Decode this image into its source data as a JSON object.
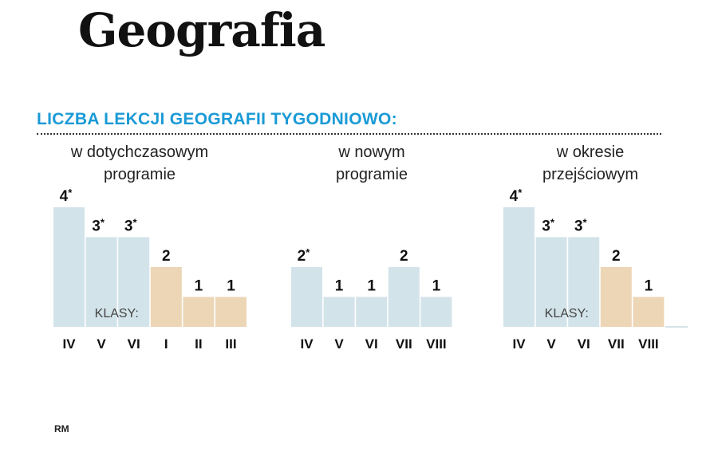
{
  "title": "Geografia",
  "subtitle": "LICZBA LEKCJI GEOGRAFII TYGODNIOWO:",
  "credit": "RM",
  "colors": {
    "blue": "#d3e3ea",
    "beige": "#ecd6b6",
    "accent": "#1a9ad6"
  },
  "chart_data": [
    {
      "type": "bar",
      "title_lines": [
        "w dotychczasowym",
        "programie"
      ],
      "categories": [
        "IV",
        "V",
        "VI",
        "I",
        "II",
        "III"
      ],
      "values": [
        4,
        3,
        3,
        2,
        1,
        1
      ],
      "value_labels": [
        "4",
        "3",
        "3",
        "2",
        "1",
        "1"
      ],
      "starred": [
        true,
        true,
        true,
        false,
        false,
        false
      ],
      "colors": [
        "blue",
        "blue",
        "blue",
        "beige",
        "beige",
        "beige"
      ],
      "klasy_label": "KLASY:",
      "ylim": [
        0,
        4
      ]
    },
    {
      "type": "bar",
      "title_lines": [
        "w nowym",
        "programie"
      ],
      "categories": [
        "IV",
        "V",
        "VI",
        "VII",
        "VIII"
      ],
      "values": [
        2,
        1,
        1,
        2,
        1
      ],
      "value_labels": [
        "2",
        "1",
        "1",
        "2",
        "1"
      ],
      "starred": [
        true,
        false,
        false,
        false,
        false
      ],
      "colors": [
        "blue",
        "blue",
        "blue",
        "blue",
        "blue"
      ],
      "klasy_label": "",
      "ylim": [
        0,
        4
      ]
    },
    {
      "type": "bar",
      "title_lines": [
        "w okresie",
        "przejściowym"
      ],
      "categories": [
        "IV",
        "V",
        "VI",
        "VII",
        "VIII"
      ],
      "values": [
        4,
        3,
        3,
        2,
        1
      ],
      "value_labels": [
        "4",
        "3",
        "3",
        "2",
        "1"
      ],
      "starred": [
        true,
        true,
        true,
        false,
        false
      ],
      "colors": [
        "blue",
        "blue",
        "blue",
        "beige",
        "beige"
      ],
      "klasy_label": "KLASY:",
      "ylim": [
        0,
        4
      ]
    }
  ]
}
